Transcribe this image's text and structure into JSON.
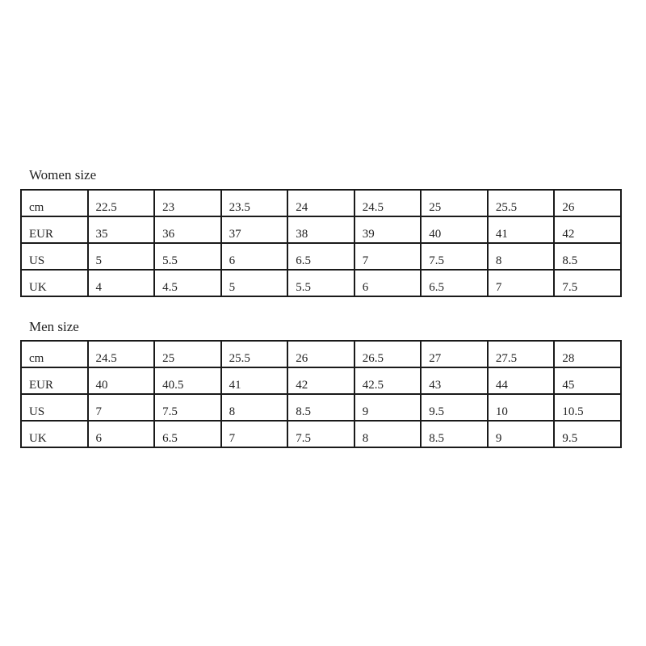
{
  "women": {
    "title": "Women size",
    "rows": [
      [
        "cm",
        "22.5",
        "23",
        "23.5",
        "24",
        "24.5",
        "25",
        "25.5",
        "26"
      ],
      [
        "EUR",
        "35",
        "36",
        "37",
        "38",
        "39",
        "40",
        "41",
        "42"
      ],
      [
        "US",
        "5",
        "5.5",
        "6",
        "6.5",
        "7",
        "7.5",
        "8",
        "8.5"
      ],
      [
        "UK",
        "4",
        "4.5",
        "5",
        "5.5",
        "6",
        "6.5",
        "7",
        "7.5"
      ]
    ]
  },
  "men": {
    "title": "Men size",
    "rows": [
      [
        "cm",
        "24.5",
        "25",
        "25.5",
        "26",
        "26.5",
        "27",
        "27.5",
        "28"
      ],
      [
        "EUR",
        "40",
        "40.5",
        "41",
        "42",
        "42.5",
        "43",
        "44",
        "45"
      ],
      [
        "US",
        "7",
        "7.5",
        "8",
        "8.5",
        "9",
        "9.5",
        "10",
        "10.5"
      ],
      [
        "UK",
        "6",
        "6.5",
        "7",
        "7.5",
        "8",
        "8.5",
        "9",
        "9.5"
      ]
    ]
  }
}
